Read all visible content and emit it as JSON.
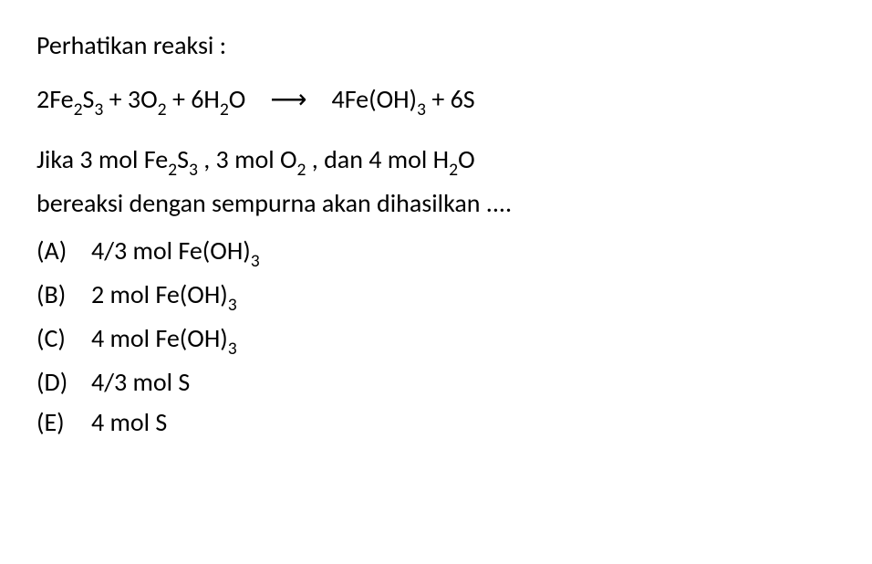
{
  "title": "Perhatikan reaksi :",
  "equation": {
    "react1": "2Fe",
    "r1_sub1": "2",
    "r1_mid": "S",
    "r1_sub2": "3",
    "plus1": " + 3O",
    "r2_sub": "2",
    "plus2": " + 6H",
    "r3_sub": "2",
    "r3_end": "O",
    "arrow": "→",
    "prod1": "4Fe(OH)",
    "p1_sub": "3",
    "plus3": " + 6S"
  },
  "question": {
    "line1_p1": "Jika 3 mol Fe",
    "line1_s1": "2",
    "line1_p2": "S",
    "line1_s2": "3",
    "line1_p3": " , 3 mol O",
    "line1_s3": "2",
    "line1_p4": " , dan 4 mol H",
    "line1_s4": "2",
    "line1_p5": "O",
    "line2": "bereaksi dengan sempurna akan dihasilkan ...."
  },
  "options": [
    {
      "label": "(A)",
      "t1": "4/3 mol Fe(OH)",
      "sub": "3",
      "t2": ""
    },
    {
      "label": "(B)",
      "t1": "2 mol Fe(OH)",
      "sub": "3",
      "t2": ""
    },
    {
      "label": "(C)",
      "t1": "4 mol Fe(OH)",
      "sub": "3",
      "t2": ""
    },
    {
      "label": "(D)",
      "t1": "4/3 mol S",
      "sub": "",
      "t2": ""
    },
    {
      "label": "(E)",
      "t1": "4 mol S",
      "sub": "",
      "t2": ""
    }
  ],
  "style": {
    "font_size": 28,
    "color": "#000000",
    "background": "#ffffff",
    "font_family": "Calibri, Arial, sans-serif"
  }
}
